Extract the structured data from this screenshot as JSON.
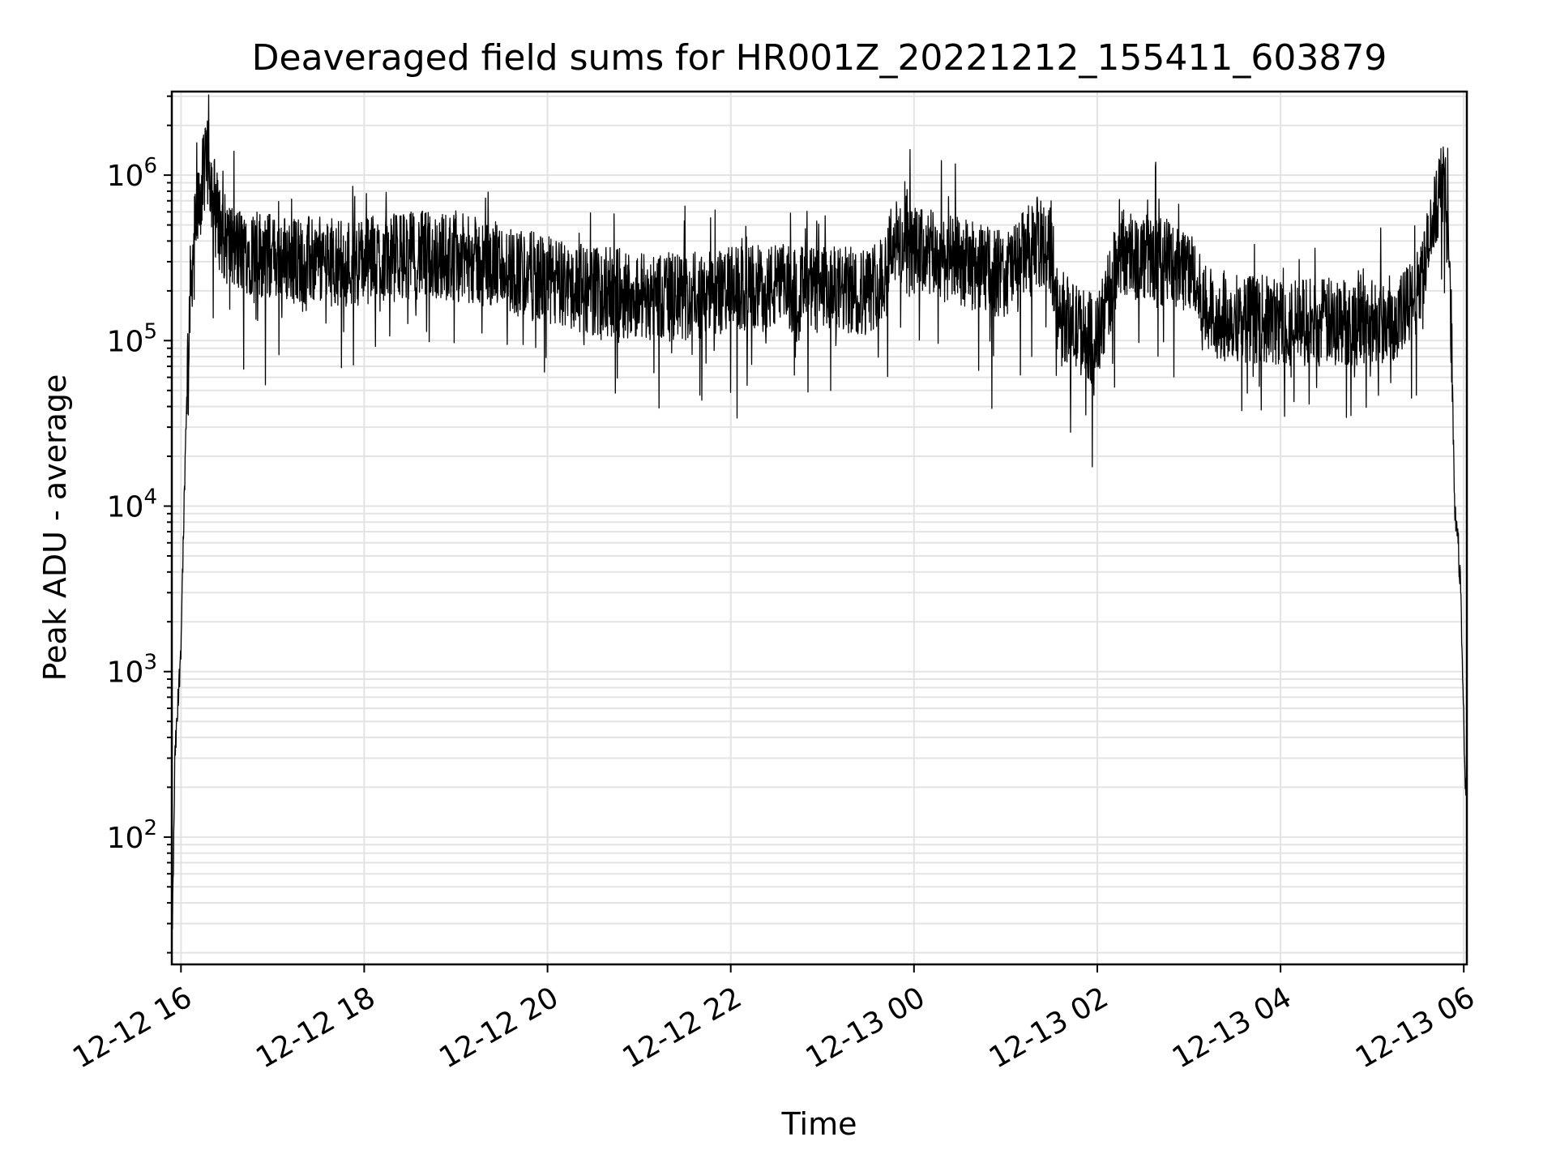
{
  "chart_data": {
    "type": "line",
    "title": "Deaveraged field sums for HR001Z_20221212_155411_603879",
    "xlabel": "Time",
    "ylabel": "Peak ADU - average",
    "y_scale": "log",
    "grid": true,
    "line_color": "#000000",
    "xlim": [
      "2022-12-12 15:54",
      "2022-12-13 06:02"
    ],
    "ylim": [
      17,
      3200000
    ],
    "x_ticks": [
      "12-12 16",
      "12-12 18",
      "12-12 20",
      "12-12 22",
      "12-13 00",
      "12-13 02",
      "12-13 04",
      "12-13 06"
    ],
    "y_ticks": [
      {
        "base": "10",
        "exp": "2",
        "value": 100
      },
      {
        "base": "10",
        "exp": "3",
        "value": 1000
      },
      {
        "base": "10",
        "exp": "4",
        "value": 10000
      },
      {
        "base": "10",
        "exp": "5",
        "value": 100000
      },
      {
        "base": "10",
        "exp": "6",
        "value": 1000000
      }
    ],
    "series": [
      {
        "x": [
          "2022-12-12 15:54",
          "2022-12-12 15:55",
          "2022-12-12 15:56",
          "2022-12-12 15:58",
          "2022-12-12 16:00",
          "2022-12-12 16:02",
          "2022-12-12 16:04",
          "2022-12-12 16:06",
          "2022-12-12 16:09",
          "2022-12-12 16:12",
          "2022-12-12 16:15",
          "2022-12-12 16:18",
          "2022-12-12 16:20",
          "2022-12-12 16:22",
          "2022-12-12 16:25",
          "2022-12-12 16:30",
          "2022-12-12 16:35",
          "2022-12-12 16:45",
          "2022-12-12 17:00",
          "2022-12-12 17:30",
          "2022-12-12 18:00",
          "2022-12-12 18:30",
          "2022-12-12 19:00",
          "2022-12-12 19:30",
          "2022-12-12 20:00",
          "2022-12-12 20:30",
          "2022-12-12 21:00",
          "2022-12-12 21:30",
          "2022-12-12 22:00",
          "2022-12-12 22:30",
          "2022-12-12 23:00",
          "2022-12-12 23:30",
          "2022-12-12 23:40",
          "2022-12-12 23:45",
          "2022-12-13 00:00",
          "2022-12-13 00:30",
          "2022-12-13 01:00",
          "2022-12-13 01:20",
          "2022-12-13 01:30",
          "2022-12-13 01:35",
          "2022-12-13 01:45",
          "2022-12-13 02:00",
          "2022-12-13 02:15",
          "2022-12-13 02:30",
          "2022-12-13 02:45",
          "2022-12-13 03:00",
          "2022-12-13 03:10",
          "2022-12-13 03:30",
          "2022-12-13 04:00",
          "2022-12-13 04:30",
          "2022-12-13 05:00",
          "2022-12-13 05:20",
          "2022-12-13 05:30",
          "2022-12-13 05:35",
          "2022-12-13 05:40",
          "2022-12-13 05:42",
          "2022-12-13 05:44",
          "2022-12-13 05:46",
          "2022-12-13 05:48",
          "2022-12-13 05:50",
          "2022-12-13 05:52",
          "2022-12-13 05:54",
          "2022-12-13 05:56",
          "2022-12-13 05:58",
          "2022-12-13 06:00",
          "2022-12-13 06:01"
        ],
        "y": [
          20,
          60,
          300,
          600,
          1500,
          10000,
          60000,
          200000,
          450000,
          700000,
          1000000,
          1200000,
          900000,
          700000,
          500000,
          400000,
          350000,
          350000,
          320000,
          300000,
          300000,
          330000,
          320000,
          280000,
          230000,
          200000,
          190000,
          180000,
          200000,
          210000,
          200000,
          200000,
          250000,
          400000,
          350000,
          300000,
          250000,
          400000,
          350000,
          150000,
          120000,
          100000,
          350000,
          320000,
          300000,
          280000,
          150000,
          140000,
          130000,
          130000,
          130000,
          140000,
          200000,
          300000,
          500000,
          700000,
          800000,
          850000,
          700000,
          400000,
          100000,
          10000,
          7000,
          3000,
          500,
          200
        ],
        "noise_amplitude_decades": 0.45
      }
    ]
  }
}
